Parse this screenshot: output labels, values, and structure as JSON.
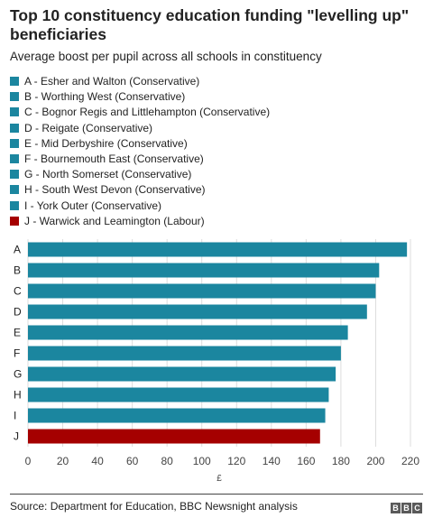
{
  "chart_data": {
    "type": "bar",
    "orientation": "horizontal",
    "title": "Top 10 constituency education funding \"levelling up\" beneficiaries",
    "subtitle": "Average boost per pupil across all schools in constituency",
    "xlabel": "£",
    "ylabel": "",
    "xlim": [
      0,
      220
    ],
    "xticks": [
      0,
      20,
      40,
      60,
      80,
      100,
      120,
      140,
      160,
      180,
      200,
      220
    ],
    "grid": true,
    "legend_position": "top",
    "categories": [
      "A",
      "B",
      "C",
      "D",
      "E",
      "F",
      "G",
      "H",
      "I",
      "J"
    ],
    "values": [
      218,
      202,
      200,
      195,
      184,
      180,
      177,
      173,
      171,
      168
    ],
    "bar_colors": [
      "#1b869f",
      "#1b869f",
      "#1b869f",
      "#1b869f",
      "#1b869f",
      "#1b869f",
      "#1b869f",
      "#1b869f",
      "#1b869f",
      "#a50000"
    ],
    "legend": [
      {
        "label": "A - Esher and Walton (Conservative)",
        "color": "#1b869f"
      },
      {
        "label": "B - Worthing West (Conservative)",
        "color": "#1b869f"
      },
      {
        "label": "C - Bognor Regis and Littlehampton (Conservative)",
        "color": "#1b869f"
      },
      {
        "label": "D - Reigate (Conservative)",
        "color": "#1b869f"
      },
      {
        "label": "E - Mid Derbyshire (Conservative)",
        "color": "#1b869f"
      },
      {
        "label": "F - Bournemouth East (Conservative)",
        "color": "#1b869f"
      },
      {
        "label": "G - North Somerset (Conservative)",
        "color": "#1b869f"
      },
      {
        "label": "H - South West Devon (Conservative)",
        "color": "#1b869f"
      },
      {
        "label": "I - York Outer (Conservative)",
        "color": "#1b869f"
      },
      {
        "label": "J - Warwick and Leamington (Labour)",
        "color": "#a50000"
      }
    ]
  },
  "footer": {
    "source": "Source: Department for Education, BBC Newsnight analysis",
    "logo": [
      "B",
      "B",
      "C"
    ]
  }
}
